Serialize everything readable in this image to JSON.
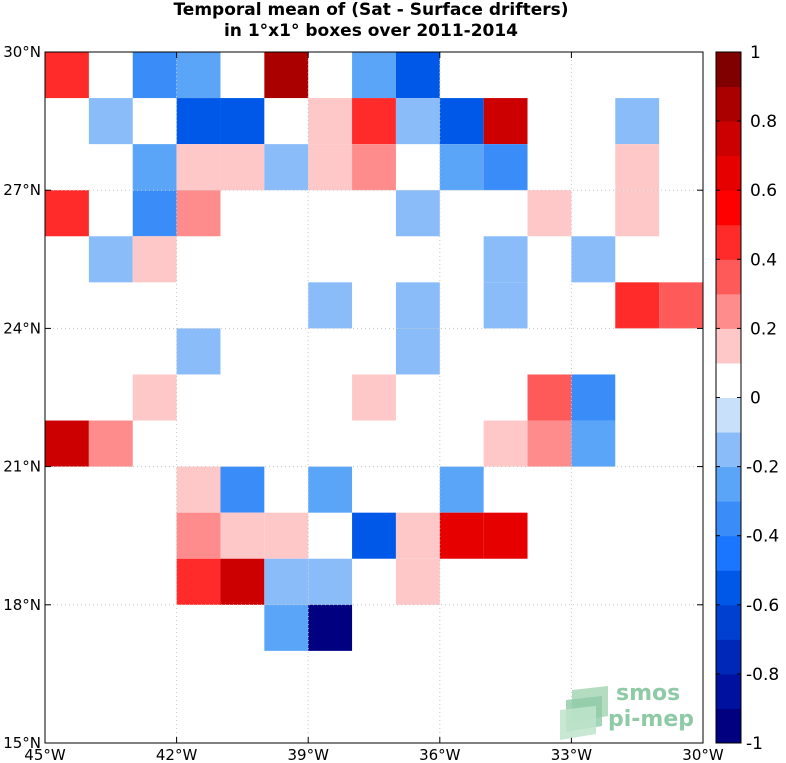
{
  "chart_data": {
    "type": "heatmap",
    "title": "Temporal mean of (Sat - Surface drifters)",
    "subtitle": "in 1°x1° boxes over 2011-2014",
    "x_range": [
      -45,
      -30
    ],
    "y_range": [
      15,
      30
    ],
    "x_ticks": [
      {
        "value": -45,
        "label": "45°W"
      },
      {
        "value": -42,
        "label": "42°W"
      },
      {
        "value": -39,
        "label": "39°W"
      },
      {
        "value": -36,
        "label": "36°W"
      },
      {
        "value": -33,
        "label": "33°W"
      },
      {
        "value": -30,
        "label": "30°W"
      }
    ],
    "y_ticks": [
      {
        "value": 30,
        "label": "30°N"
      },
      {
        "value": 27,
        "label": "27°N"
      },
      {
        "value": 24,
        "label": "24°N"
      },
      {
        "value": 21,
        "label": "21°N"
      },
      {
        "value": 18,
        "label": "18°N"
      },
      {
        "value": 15,
        "label": "15°N"
      }
    ],
    "grid": true,
    "colorbar": {
      "range": [
        -1,
        1
      ],
      "levels": 20,
      "colors": [
        "#000080",
        "#0011a0",
        "#0028b8",
        "#0040d0",
        "#0058e8",
        "#1a75ff",
        "#3a8cf8",
        "#5aa5f8",
        "#8abcfa",
        "#c8e0fa",
        "#ffffff",
        "#ffc8c8",
        "#ff8c8c",
        "#ff5a5a",
        "#ff2a2a",
        "#ff0000",
        "#e60000",
        "#cc0000",
        "#aa0000",
        "#800000"
      ],
      "tick_values": [
        1,
        0.8,
        0.6,
        0.4,
        0.2,
        0,
        -0.2,
        -0.4,
        -0.6,
        -0.8,
        -1
      ],
      "tick_labels": [
        "1",
        "0.8",
        "0.6",
        "0.4",
        "0.2",
        "0",
        "-0.2",
        "-0.4",
        "-0.6",
        "-0.8",
        "-1"
      ]
    },
    "cells": [
      {
        "lon": -45,
        "lat": 29,
        "value": 0.45
      },
      {
        "lon": -43,
        "lat": 29,
        "value": -0.35
      },
      {
        "lon": -42,
        "lat": 29,
        "value": -0.25
      },
      {
        "lon": -40,
        "lat": 29,
        "value": 0.85
      },
      {
        "lon": -38,
        "lat": 29,
        "value": -0.25
      },
      {
        "lon": -37,
        "lat": 29,
        "value": -0.55
      },
      {
        "lon": -44,
        "lat": 28,
        "value": -0.15
      },
      {
        "lon": -42,
        "lat": 28,
        "value": -0.55
      },
      {
        "lon": -41,
        "lat": 28,
        "value": -0.55
      },
      {
        "lon": -39,
        "lat": 28,
        "value": 0.15
      },
      {
        "lon": -38,
        "lat": 28,
        "value": 0.45
      },
      {
        "lon": -37,
        "lat": 28,
        "value": -0.15
      },
      {
        "lon": -36,
        "lat": 28,
        "value": -0.55
      },
      {
        "lon": -35,
        "lat": 28,
        "value": 0.75
      },
      {
        "lon": -32,
        "lat": 28,
        "value": -0.15
      },
      {
        "lon": -43,
        "lat": 27,
        "value": -0.25
      },
      {
        "lon": -42,
        "lat": 27,
        "value": 0.15
      },
      {
        "lon": -41,
        "lat": 27,
        "value": 0.15
      },
      {
        "lon": -40,
        "lat": 27,
        "value": -0.15
      },
      {
        "lon": -39,
        "lat": 27,
        "value": 0.15
      },
      {
        "lon": -38,
        "lat": 27,
        "value": 0.25
      },
      {
        "lon": -36,
        "lat": 27,
        "value": -0.25
      },
      {
        "lon": -35,
        "lat": 27,
        "value": -0.35
      },
      {
        "lon": -32,
        "lat": 27,
        "value": 0.15
      },
      {
        "lon": -45,
        "lat": 26,
        "value": 0.45
      },
      {
        "lon": -43,
        "lat": 26,
        "value": -0.35
      },
      {
        "lon": -42,
        "lat": 26,
        "value": 0.25
      },
      {
        "lon": -37,
        "lat": 26,
        "value": -0.15
      },
      {
        "lon": -34,
        "lat": 26,
        "value": 0.15
      },
      {
        "lon": -32,
        "lat": 26,
        "value": 0.15
      },
      {
        "lon": -44,
        "lat": 25,
        "value": -0.15
      },
      {
        "lon": -43,
        "lat": 25,
        "value": 0.15
      },
      {
        "lon": -35,
        "lat": 25,
        "value": -0.15
      },
      {
        "lon": -33,
        "lat": 25,
        "value": -0.15
      },
      {
        "lon": -39,
        "lat": 24,
        "value": -0.15
      },
      {
        "lon": -37,
        "lat": 24,
        "value": -0.15
      },
      {
        "lon": -35,
        "lat": 24,
        "value": -0.15
      },
      {
        "lon": -32,
        "lat": 24,
        "value": 0.45
      },
      {
        "lon": -31,
        "lat": 24,
        "value": 0.35
      },
      {
        "lon": -42,
        "lat": 23,
        "value": -0.15
      },
      {
        "lon": -37,
        "lat": 23,
        "value": -0.15
      },
      {
        "lon": -43,
        "lat": 22,
        "value": 0.15
      },
      {
        "lon": -38,
        "lat": 22,
        "value": 0.15
      },
      {
        "lon": -34,
        "lat": 22,
        "value": 0.35
      },
      {
        "lon": -33,
        "lat": 22,
        "value": -0.35
      },
      {
        "lon": -45,
        "lat": 21,
        "value": 0.75
      },
      {
        "lon": -44,
        "lat": 21,
        "value": 0.25
      },
      {
        "lon": -35,
        "lat": 21,
        "value": 0.15
      },
      {
        "lon": -34,
        "lat": 21,
        "value": 0.25
      },
      {
        "lon": -33,
        "lat": 21,
        "value": -0.25
      },
      {
        "lon": -42,
        "lat": 20,
        "value": 0.15
      },
      {
        "lon": -41,
        "lat": 20,
        "value": -0.35
      },
      {
        "lon": -39,
        "lat": 20,
        "value": -0.25
      },
      {
        "lon": -36,
        "lat": 20,
        "value": -0.25
      },
      {
        "lon": -42,
        "lat": 19,
        "value": 0.25
      },
      {
        "lon": -41,
        "lat": 19,
        "value": 0.15
      },
      {
        "lon": -40,
        "lat": 19,
        "value": 0.15
      },
      {
        "lon": -38,
        "lat": 19,
        "value": -0.55
      },
      {
        "lon": -37,
        "lat": 19,
        "value": 0.15
      },
      {
        "lon": -36,
        "lat": 19,
        "value": 0.65
      },
      {
        "lon": -35,
        "lat": 19,
        "value": 0.65
      },
      {
        "lon": -42,
        "lat": 18,
        "value": 0.45
      },
      {
        "lon": -41,
        "lat": 18,
        "value": 0.75
      },
      {
        "lon": -40,
        "lat": 18,
        "value": -0.15
      },
      {
        "lon": -39,
        "lat": 18,
        "value": -0.15
      },
      {
        "lon": -37,
        "lat": 18,
        "value": 0.15
      },
      {
        "lon": -40,
        "lat": 17,
        "value": -0.25
      },
      {
        "lon": -39,
        "lat": 17,
        "value": -0.95
      }
    ]
  },
  "logo": {
    "line1": "smos",
    "line2": "pi-mep"
  }
}
